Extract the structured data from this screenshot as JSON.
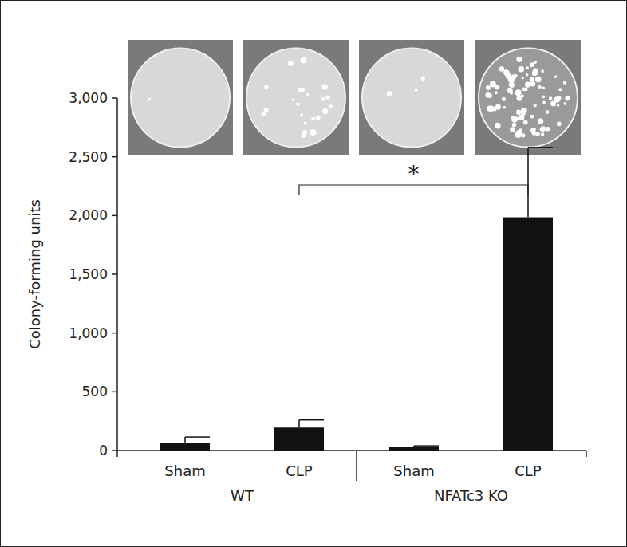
{
  "chart_data": {
    "type": "bar",
    "ylabel": "Colony-forming units",
    "categories": [
      "Sham",
      "CLP",
      "Sham",
      "CLP"
    ],
    "groups": [
      {
        "label": "WT",
        "members": [
          0,
          1
        ]
      },
      {
        "label": "NFATc3 KO",
        "members": [
          2,
          3
        ]
      }
    ],
    "values": [
      65,
      195,
      30,
      1985
    ],
    "errors": [
      50,
      65,
      10,
      595
    ],
    "color": "#111111",
    "ylim": [
      0,
      3000
    ],
    "yticks": [
      0,
      500,
      {
        "value": 1000,
        "label": "1,000"
      },
      {
        "value": 1500,
        "label": "1,500"
      },
      {
        "value": 2000,
        "label": "2,000"
      },
      {
        "value": 2500,
        "label": "2,500"
      },
      {
        "value": 3000,
        "label": "3,000"
      }
    ],
    "grid": false,
    "annotations": [
      {
        "text": "*",
        "from": 1,
        "to": 3
      }
    ]
  }
}
